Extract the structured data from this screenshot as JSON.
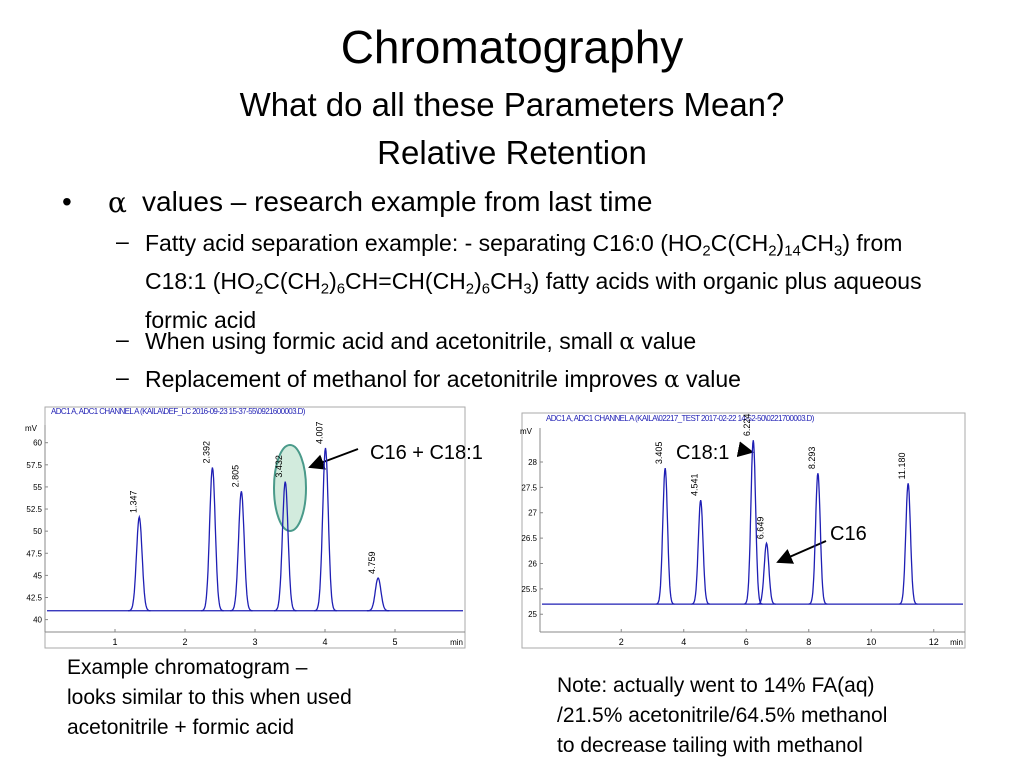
{
  "header": {
    "title": "Chromatography",
    "subtitle": [
      "What do all these Parameters Mean?",
      "Relative Retention"
    ]
  },
  "bullet": {
    "marker": "•",
    "symbol": "α",
    "text": "values – research example from last time",
    "items": [
      {
        "marker": "–",
        "parts": [
          {
            "text": "Fatty acid separation example: - separating C16:0 (HO"
          },
          {
            "text": "2",
            "sub": true
          },
          {
            "text": "C(CH"
          },
          {
            "text": "2",
            "sub": true
          },
          {
            "text": ")"
          },
          {
            "text": "14",
            "sub": true
          },
          {
            "text": "CH"
          },
          {
            "text": "3",
            "sub": true
          },
          {
            "text": ") from C18:1 (HO"
          },
          {
            "text": "2",
            "sub": true
          },
          {
            "text": "C(CH"
          },
          {
            "text": "2",
            "sub": true
          },
          {
            "text": ")"
          },
          {
            "text": "6",
            "sub": true
          },
          {
            "text": "CH=CH(CH"
          },
          {
            "text": "2",
            "sub": true
          },
          {
            "text": ")"
          },
          {
            "text": "6",
            "sub": true
          },
          {
            "text": "CH"
          },
          {
            "text": "3",
            "sub": true
          },
          {
            "text": ") fatty acids with organic plus aqueous formic acid"
          }
        ]
      },
      {
        "marker": "–",
        "parts": [
          {
            "text": "When using formic acid and acetonitrile, small "
          },
          {
            "text": "α"
          },
          {
            "text": " value"
          }
        ]
      },
      {
        "marker": "–",
        "parts": [
          {
            "text": "Replacement of methanol for acetonitrile improves "
          },
          {
            "text": "α"
          },
          {
            "text": " value"
          }
        ]
      }
    ]
  },
  "chart_data": [
    {
      "type": "chromatogram",
      "header": "ADC1 A, ADC1 CHANNEL A (KAILA\\DEF_LC 2016-09-23 15-37-55\\0921600003.D)",
      "ylabel": "mV",
      "xlabel": "min",
      "color": "#1f1fb4",
      "baseline": 41,
      "x": [
        1.347,
        2.392,
        2.805,
        3.432,
        4.007,
        4.759
      ],
      "values": [
        51.6,
        57.2,
        54.5,
        55.6,
        59.4,
        44.7
      ],
      "x_labels": [
        "1.347",
        "2.392",
        "2.805",
        "3.432",
        "4.007",
        "4.759"
      ],
      "xlim": [
        0,
        6
      ],
      "ylim": [
        38.6,
        62
      ],
      "xticks": [
        1,
        2,
        3,
        4,
        5
      ],
      "yticks": [
        40,
        42.5,
        45,
        47.5,
        50,
        52.5,
        55,
        57.5,
        60
      ]
    },
    {
      "type": "chromatogram",
      "header": "ADC1 A, ADC1 CHANNEL A (KAILA\\02217_TEST 2017-02-22 14-52-50\\0221700003.D)",
      "ylabel": "mV",
      "xlabel": "min",
      "color": "#1f1fb4",
      "baseline": 25.2,
      "x": [
        3.405,
        4.541,
        6.224,
        6.649,
        8.293,
        11.18
      ],
      "values": [
        27.88,
        27.25,
        28.43,
        26.4,
        27.78,
        27.58
      ],
      "x_labels": [
        "3.405",
        "4.541",
        "6.224",
        "6.649",
        "8.293",
        "11.180"
      ],
      "xlim": [
        -0.6,
        13
      ],
      "ylim": [
        24.65,
        28.67
      ],
      "xticks": [
        2,
        4,
        6,
        8,
        10,
        12
      ],
      "yticks": [
        25,
        25.5,
        26,
        26.5,
        27,
        27.5,
        28
      ]
    }
  ],
  "annotations": [
    "C16 + C18:1",
    "C18:1",
    "C16"
  ],
  "captions": [
    [
      "Example chromatogram –",
      "looks similar to this when used",
      "acetonitrile + formic acid"
    ],
    [
      "Note: actually went to 14% FA(aq)",
      "/21.5% acetonitrile/64.5% methanol",
      "to decrease tailing with methanol"
    ]
  ]
}
